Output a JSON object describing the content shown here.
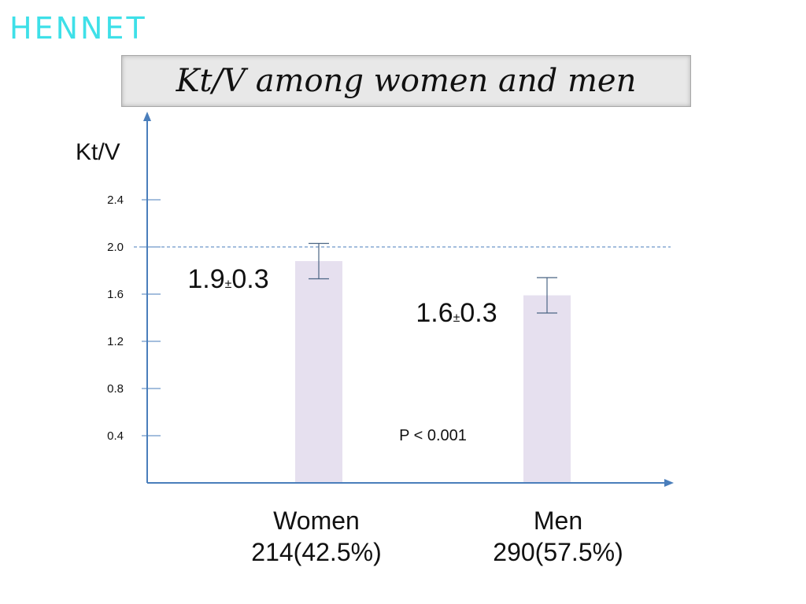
{
  "logo": "HENNET",
  "title": "Kt/V among women and men",
  "chart_data": {
    "type": "bar",
    "title": "Kt/V among women and men",
    "ylabel": "Kt/V",
    "ylim": [
      0,
      2.8
    ],
    "yticks": [
      "0.4",
      "0.8",
      "1.2",
      "1.6",
      "2.0",
      "2.4"
    ],
    "reference_line": 2.0,
    "categories": [
      "Women",
      "Men"
    ],
    "category_counts": [
      "214(42.5%)",
      "290(57.5%)"
    ],
    "values": [
      1.88,
      1.59
    ],
    "errors": [
      0.3,
      0.3
    ],
    "value_labels": [
      {
        "mean": "1.9",
        "pm": "±",
        "sd": "0.3"
      },
      {
        "mean": "1.6",
        "pm": "±",
        "sd": "0.3"
      }
    ],
    "annotation": "P < 0.001",
    "bar_color": "#e6e0ef",
    "axis_color": "#4a7ebb"
  }
}
